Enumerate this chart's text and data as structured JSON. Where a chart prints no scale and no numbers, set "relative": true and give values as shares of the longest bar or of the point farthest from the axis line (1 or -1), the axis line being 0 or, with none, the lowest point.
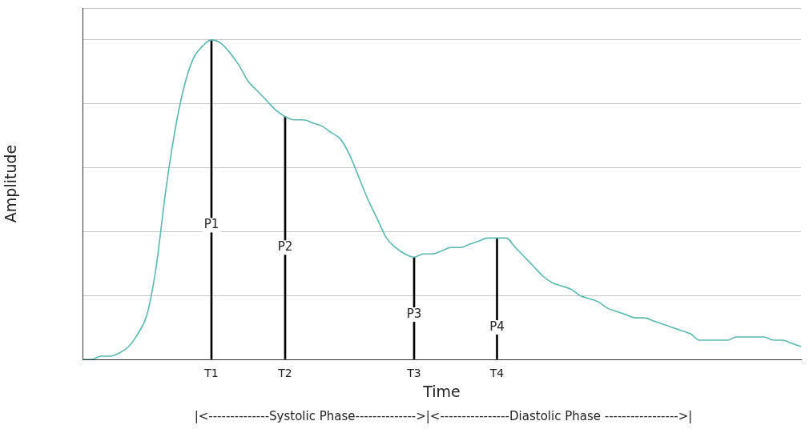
{
  "chart_data": {
    "type": "line",
    "relative": true,
    "xlabel": "Time",
    "ylabel": "Amplitude",
    "grid": "y",
    "legend": false,
    "marker": "none",
    "line_style": "solid",
    "categories": [
      null,
      null,
      null,
      null,
      null,
      null,
      null,
      null,
      null,
      null,
      null,
      null,
      null,
      null,
      "T1",
      null,
      null,
      null,
      null,
      null,
      null,
      null,
      "T2",
      null,
      null,
      null,
      null,
      null,
      null,
      null,
      null,
      null,
      null,
      null,
      null,
      null,
      "T3",
      null,
      null,
      null,
      null,
      null,
      null,
      null,
      null,
      "T4",
      null,
      null,
      null,
      null,
      null,
      null,
      null,
      null,
      null,
      null,
      null,
      null,
      null,
      null,
      null,
      null,
      null,
      null,
      null,
      null,
      null,
      null,
      null,
      null,
      null,
      null,
      null,
      null,
      null,
      null,
      null,
      null,
      null
    ],
    "series": [
      {
        "color": "#5bb8b0",
        "values": [
          0,
          0,
          0.01,
          0.01,
          0.02,
          0.04,
          0.08,
          0.14,
          0.29,
          0.52,
          0.71,
          0.85,
          0.94,
          0.98,
          1,
          0.99,
          0.96,
          0.92,
          0.87,
          0.84,
          0.81,
          0.78,
          0.76,
          0.75,
          0.75,
          0.74,
          0.73,
          0.71,
          0.69,
          0.64,
          0.57,
          0.5,
          0.44,
          0.38,
          0.35,
          0.33,
          0.32,
          0.33,
          0.33,
          0.34,
          0.35,
          0.35,
          0.36,
          0.37,
          0.38,
          0.38,
          0.38,
          0.35,
          0.32,
          0.29,
          0.26,
          0.24,
          0.23,
          0.22,
          0.2,
          0.19,
          0.18,
          0.16,
          0.15,
          0.14,
          0.13,
          0.13,
          0.12,
          0.11,
          0.1,
          0.09,
          0.08,
          0.06,
          0.06,
          0.06,
          0.06,
          0.07,
          0.07,
          0.07,
          0.07,
          0.06,
          0.06,
          0.05,
          0.04
        ]
      },
      {
        "type": "bar",
        "color": "#000000",
        "values": [
          null,
          null,
          null,
          null,
          null,
          null,
          null,
          null,
          null,
          null,
          null,
          null,
          null,
          null,
          1,
          null,
          null,
          null,
          null,
          null,
          null,
          null,
          0.76,
          null,
          null,
          null,
          null,
          null,
          null,
          null,
          null,
          null,
          null,
          null,
          null,
          null,
          0.32,
          null,
          null,
          null,
          null,
          null,
          null,
          null,
          null,
          0.38,
          null,
          null,
          null,
          null,
          null,
          null,
          null,
          null,
          null,
          null,
          null,
          null,
          null,
          null,
          null,
          null,
          null,
          null,
          null,
          null,
          null,
          null,
          null,
          null,
          null,
          null,
          null,
          null,
          null,
          null,
          null,
          null,
          null
        ]
      }
    ],
    "annotations": [
      {
        "text": "P1",
        "x": "T1",
        "y": 0.42
      },
      {
        "text": "P2",
        "x": "T2",
        "y": 0.35
      },
      {
        "text": "P3",
        "x": "T3",
        "y": 0.14
      },
      {
        "text": "P4",
        "x": "T4",
        "y": 0.1
      },
      "|<--------------Systolic Phase-------------->|<----------------Diastolic Phase ----------------->|"
    ]
  }
}
